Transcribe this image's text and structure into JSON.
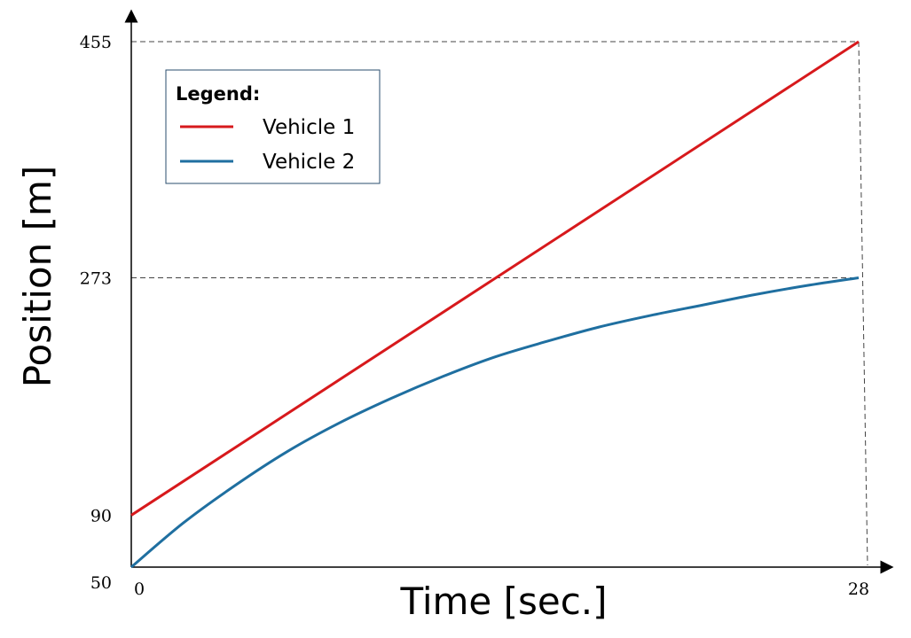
{
  "chart_data": {
    "type": "line",
    "title": "",
    "xlabel": "Time [sec.]",
    "ylabel": "Position [m]",
    "xlim": [
      0,
      28
    ],
    "ylim": [
      50,
      455
    ],
    "x_ticks": [
      0,
      28
    ],
    "x_tick_labels": [
      "0",
      "28"
    ],
    "y_ticks": [
      50,
      90,
      273,
      455
    ],
    "y_tick_labels": [
      "50",
      "90",
      "273",
      "455"
    ],
    "grid": false,
    "legend": {
      "title": "Legend:",
      "position": "top-left"
    },
    "series": [
      {
        "name": "Vehicle 1",
        "color": "#d7191c",
        "x": [
          0,
          28
        ],
        "y": [
          90,
          455
        ]
      },
      {
        "name": "Vehicle 2",
        "color": "#1f6fa0",
        "x": [
          0,
          2,
          4,
          6,
          8,
          10,
          12,
          14,
          16,
          18,
          20,
          22,
          24,
          26,
          28
        ],
        "y": [
          50,
          84,
          113,
          139,
          161,
          180,
          197,
          212,
          224,
          235,
          244,
          252,
          260,
          267,
          273
        ]
      }
    ],
    "reference_lines": [
      {
        "type": "horizontal",
        "y": 455,
        "x_to": 28,
        "style": "dashed"
      },
      {
        "type": "horizontal",
        "y": 273,
        "x_to": 28,
        "style": "dashed"
      },
      {
        "type": "vertical",
        "x": 28,
        "y_to": 455,
        "style": "dashed"
      }
    ]
  }
}
